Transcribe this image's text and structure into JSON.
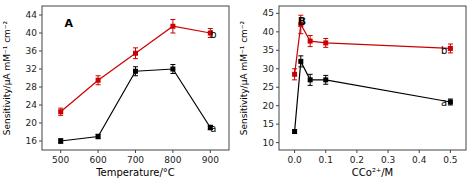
{
  "chart_data": [
    {
      "type": "line",
      "x": [
        500,
        600,
        700,
        800,
        900
      ],
      "series": [
        {
          "color": "#cc0000",
          "marker": "square",
          "values": [
            22.5,
            29.5,
            35.5,
            41.5,
            40.0
          ],
          "errors": [
            0.8,
            1.0,
            1.2,
            1.5,
            1.0
          ]
        },
        {
          "color": "#000000",
          "marker": "square",
          "values": [
            16.0,
            17.0,
            31.5,
            32.0,
            19.0
          ],
          "errors": [
            0.5,
            0.5,
            1.0,
            1.0,
            0.5
          ]
        }
      ],
      "xlabel": "Temperature/°C",
      "ylabel": "Sensitivity/μA mM⁻¹ cm⁻²",
      "xlim": [
        450,
        950
      ],
      "xticks": [
        500,
        600,
        700,
        800,
        900
      ],
      "ylim": [
        14,
        46
      ],
      "yticks": [
        16,
        20,
        24,
        28,
        32,
        36,
        40,
        44
      ],
      "annotations": [
        {
          "text": "A",
          "x": 510,
          "y": 43.5,
          "color": "#000000"
        },
        {
          "text": "a",
          "x": 900,
          "y": 17.5,
          "color": "#000000"
        },
        {
          "text": "b",
          "x": 900,
          "y": 38.5,
          "color": "#000000"
        }
      ]
    },
    {
      "type": "line",
      "x": [
        0.0,
        0.02,
        0.05,
        0.1,
        0.5
      ],
      "series": [
        {
          "color": "#cc0000",
          "marker": "square",
          "values": [
            28.5,
            42.0,
            37.5,
            37.0,
            35.5
          ],
          "errors": [
            1.5,
            2.5,
            1.5,
            1.2,
            1.2
          ]
        },
        {
          "color": "#000000",
          "marker": "square",
          "values": [
            13.0,
            32.0,
            27.0,
            27.0,
            21.0
          ],
          "errors": [
            0.5,
            1.5,
            1.5,
            1.2,
            0.8
          ]
        }
      ],
      "xlabel": "CCo²⁺/M",
      "ylabel": "Sensitivity/μA mM⁻¹ cm⁻²",
      "xlim": [
        -0.05,
        0.55
      ],
      "xticks": [
        {
          "value": 0.0,
          "label": "0.0"
        },
        0.1,
        0.2,
        0.3,
        0.4,
        0.5
      ],
      "ylim": [
        8,
        47
      ],
      "yticks": [
        10,
        15,
        20,
        25,
        30,
        35,
        40,
        45
      ],
      "annotations": [
        {
          "text": "B",
          "x": 0.01,
          "y": 44.5,
          "color": "#000000"
        },
        {
          "text": "a",
          "x": 0.47,
          "y": 19.5,
          "color": "#000000"
        },
        {
          "text": "b",
          "x": 0.47,
          "y": 33.5,
          "color": "#000000"
        }
      ]
    }
  ]
}
